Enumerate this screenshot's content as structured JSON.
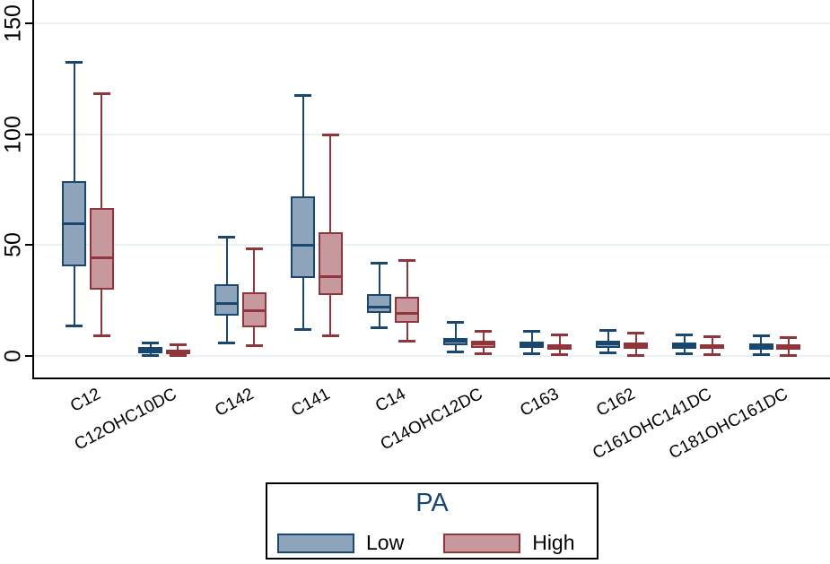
{
  "figure": {
    "background": "#ffffff",
    "axis_color": "#000000"
  },
  "chart_data": {
    "type": "boxplot",
    "title": "",
    "xlabel": "",
    "ylabel": "",
    "categories": [
      "C12",
      "C12OHC10DC",
      "C142",
      "C141",
      "C14",
      "C14OHC12DC",
      "C163",
      "C162",
      "C161OHC141DC",
      "C181OHC161DC"
    ],
    "y_axis": {
      "ticks": [
        0,
        50,
        100,
        150
      ],
      "range": [
        -10,
        160
      ],
      "grid": true
    },
    "grid_color": "#E8F1F4",
    "legend": {
      "title": "PA",
      "title_color": "#1A476F",
      "position": "bottom",
      "entries": [
        {
          "label": "Low",
          "fill": "#8EA4BA",
          "stroke": "#1A476F"
        },
        {
          "label": "High",
          "fill": "#C7999D",
          "stroke": "#90353B"
        }
      ]
    },
    "series": [
      {
        "name": "Low",
        "fill": "#8EA4BA",
        "stroke": "#1A476F",
        "boxes": [
          {
            "min": 13.7,
            "q1": 40.6,
            "median": 59.5,
            "q3": 79.0,
            "max": 132.5
          },
          {
            "min": 0.5,
            "q1": 1.5,
            "median": 2.6,
            "q3": 4.0,
            "max": 6.0
          },
          {
            "min": 5.8,
            "q1": 18.3,
            "median": 23.7,
            "q3": 32.5,
            "max": 53.4
          },
          {
            "min": 11.9,
            "q1": 35.2,
            "median": 50.0,
            "q3": 71.9,
            "max": 117.3
          },
          {
            "min": 12.7,
            "q1": 19.3,
            "median": 22.0,
            "q3": 28.1,
            "max": 41.7
          },
          {
            "min": 1.9,
            "q1": 5.0,
            "median": 6.7,
            "q3": 8.3,
            "max": 15.1
          },
          {
            "min": 1.1,
            "q1": 3.9,
            "median": 5.1,
            "q3": 6.5,
            "max": 11.3
          },
          {
            "min": 1.5,
            "q1": 3.9,
            "median": 5.5,
            "q3": 6.9,
            "max": 11.6
          },
          {
            "min": 1.1,
            "q1": 3.5,
            "median": 4.9,
            "q3": 6.2,
            "max": 9.6
          },
          {
            "min": 0.8,
            "q1": 3.1,
            "median": 4.5,
            "q3": 5.8,
            "max": 9.3
          }
        ]
      },
      {
        "name": "High",
        "fill": "#C7999D",
        "stroke": "#90353B",
        "boxes": [
          {
            "min": 9.3,
            "q1": 29.9,
            "median": 44.2,
            "q3": 66.6,
            "max": 118.3
          },
          {
            "min": 0.3,
            "q1": 1.0,
            "median": 2.0,
            "q3": 3.1,
            "max": 5.0
          },
          {
            "min": 4.9,
            "q1": 12.9,
            "median": 20.4,
            "q3": 28.7,
            "max": 48.4
          },
          {
            "min": 9.3,
            "q1": 27.4,
            "median": 35.9,
            "q3": 55.7,
            "max": 99.6
          },
          {
            "min": 6.9,
            "q1": 15.0,
            "median": 19.4,
            "q3": 26.7,
            "max": 43.3
          },
          {
            "min": 1.2,
            "q1": 3.9,
            "median": 5.5,
            "q3": 7.0,
            "max": 11.4
          },
          {
            "min": 0.9,
            "q1": 3.1,
            "median": 4.2,
            "q3": 5.5,
            "max": 9.8
          },
          {
            "min": 0.5,
            "q1": 3.5,
            "median": 4.9,
            "q3": 6.2,
            "max": 10.6
          },
          {
            "min": 0.8,
            "q1": 3.2,
            "median": 4.5,
            "q3": 5.5,
            "max": 8.9
          },
          {
            "min": 0.4,
            "q1": 2.8,
            "median": 4.2,
            "q3": 5.5,
            "max": 8.5
          }
        ]
      }
    ]
  }
}
